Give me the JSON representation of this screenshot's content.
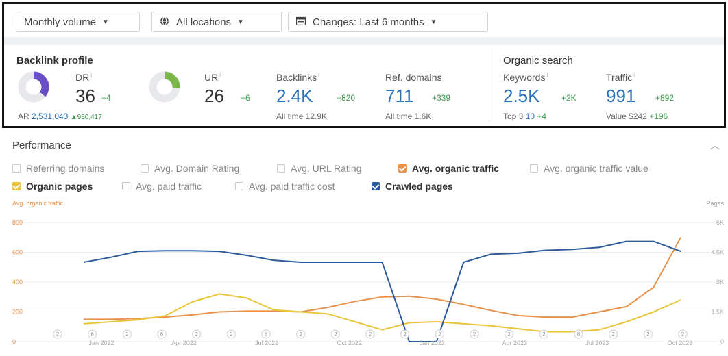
{
  "toolbar": {
    "volume": "Monthly volume",
    "locations": "All locations",
    "changes": "Changes: Last 6 months",
    "globe_icon": "globe-icon",
    "calendar_icon": "calendar-icon"
  },
  "backlink_profile": {
    "title": "Backlink profile",
    "dr": {
      "label": "DR",
      "value": "36",
      "delta": "+4",
      "fill": 0.36
    },
    "ar": {
      "label": "AR",
      "value": "2,531,043",
      "delta": "▲930,417"
    },
    "ur": {
      "label": "UR",
      "value": "26",
      "delta": "+6",
      "fill": 0.26
    },
    "backlinks": {
      "label": "Backlinks",
      "value": "2.4K",
      "delta": "+820",
      "sub": "All time 12.9K"
    },
    "ref_domains": {
      "label": "Ref. domains",
      "value": "711",
      "delta": "+339",
      "sub": "All time 1.6K"
    }
  },
  "organic_search": {
    "title": "Organic search",
    "keywords": {
      "label": "Keywords",
      "value": "2.5K",
      "delta": "+2K",
      "sub_label": "Top 3",
      "sub_value": "10",
      "sub_delta": "+4"
    },
    "traffic": {
      "label": "Traffic",
      "value": "991",
      "delta": "+892",
      "sub_label": "Value",
      "sub_value": "$242",
      "sub_delta": "+196"
    }
  },
  "performance": {
    "title": "Performance",
    "legend": [
      {
        "label": "Referring domains",
        "checked": false,
        "color": ""
      },
      {
        "label": "Avg. Domain Rating",
        "checked": false,
        "color": ""
      },
      {
        "label": "Avg. URL Rating",
        "checked": false,
        "color": ""
      },
      {
        "label": "Avg. organic traffic",
        "checked": true,
        "color": "#e8914a"
      },
      {
        "label": "Avg. organic traffic value",
        "checked": false,
        "color": ""
      },
      {
        "label": "Organic pages",
        "checked": true,
        "color": "#e9c53a"
      },
      {
        "label": "Avg. paid traffic",
        "checked": false,
        "color": ""
      },
      {
        "label": "Avg. paid traffic cost",
        "checked": false,
        "color": ""
      },
      {
        "label": "Crawled pages",
        "checked": true,
        "color": "#2d5a9a"
      }
    ],
    "left_axis_title": "Avg. organic traffic",
    "right_axis_title": "Pages"
  },
  "chart_data": {
    "type": "line",
    "x_tick_labels": [
      "Jan 2022",
      "Apr 2022",
      "Jul 2022",
      "Oct 2022",
      "Jan 2023",
      "Apr 2023",
      "Jul 2023",
      "Oct 2023"
    ],
    "y_left": {
      "title": "Avg. organic traffic",
      "ticks": [
        "0",
        "200",
        "400",
        "600",
        "800"
      ],
      "lim": [
        0,
        800
      ]
    },
    "y_right": {
      "title": "Pages",
      "ticks": [
        "0",
        "1.5K",
        "3K",
        "4.5K",
        "6K"
      ],
      "lim": [
        0,
        6000
      ]
    },
    "series": [
      {
        "name": "Avg. organic traffic",
        "axis": "left",
        "color": "#e8914a",
        "values": [
          150,
          150,
          155,
          165,
          180,
          200,
          205,
          205,
          200,
          230,
          270,
          300,
          305,
          285,
          250,
          210,
          175,
          165,
          165,
          200,
          235,
          365,
          700
        ]
      },
      {
        "name": "Organic pages",
        "axis": "right",
        "color": "#e9c53a",
        "values": [
          900,
          1000,
          1100,
          1300,
          2000,
          2400,
          2200,
          1600,
          1500,
          1400,
          1000,
          600,
          950,
          1000,
          900,
          800,
          650,
          500,
          500,
          600,
          1000,
          1500,
          2100
        ]
      },
      {
        "name": "Crawled pages",
        "axis": "right",
        "color": "#2d5a9a",
        "values": [
          4000,
          4250,
          4550,
          4575,
          4575,
          4550,
          4350,
          4100,
          4000,
          4000,
          4000,
          4000,
          0,
          0,
          4000,
          4400,
          4450,
          4600,
          4650,
          4750,
          5050,
          5050,
          4550
        ]
      }
    ],
    "marker_labels": [
      "2",
      "6",
      "2",
      "6",
      "2",
      "2",
      "8",
      "2",
      "2",
      "2",
      "2",
      "2",
      "2",
      "2",
      "2",
      "8",
      "2",
      "2",
      "2"
    ]
  }
}
